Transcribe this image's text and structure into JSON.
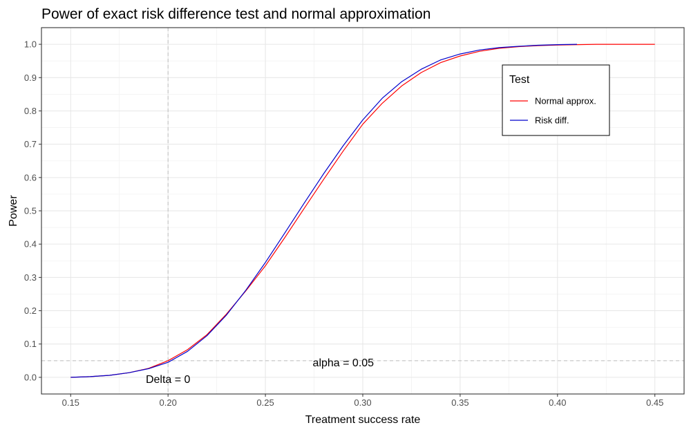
{
  "chart_data": {
    "type": "line",
    "title": "Power of exact risk difference test and normal approximation",
    "xlabel": "Treatment success rate",
    "ylabel": "Power",
    "xlim": [
      0.135,
      0.465
    ],
    "ylim": [
      -0.05,
      1.05
    ],
    "x_ticks": [
      0.15,
      0.2,
      0.25,
      0.3,
      0.35,
      0.4,
      0.45
    ],
    "x_tick_labels": [
      "0.15",
      "0.20",
      "0.25",
      "0.30",
      "0.35",
      "0.40",
      "0.45"
    ],
    "y_ticks": [
      0.0,
      0.1,
      0.2,
      0.3,
      0.4,
      0.5,
      0.6,
      0.7,
      0.8,
      0.9,
      1.0
    ],
    "y_tick_labels": [
      "0.0",
      "0.1",
      "0.2",
      "0.3",
      "0.4",
      "0.5",
      "0.6",
      "0.7",
      "0.8",
      "0.9",
      "1.0"
    ],
    "grid": true,
    "legend": {
      "title": "Test",
      "position": "top-right"
    },
    "reference_lines": [
      {
        "orientation": "horizontal",
        "value": 0.05,
        "label": "alpha = 0.05",
        "label_x": 0.29,
        "label_y": 0.05
      },
      {
        "orientation": "vertical",
        "value": 0.2,
        "label": "Delta = 0",
        "label_x": 0.2,
        "label_y": 0.0
      }
    ],
    "series": [
      {
        "name": "Normal approx.",
        "color": "#ff0000",
        "x": [
          0.15,
          0.16,
          0.17,
          0.18,
          0.19,
          0.2,
          0.21,
          0.22,
          0.23,
          0.24,
          0.25,
          0.26,
          0.27,
          0.28,
          0.29,
          0.3,
          0.31,
          0.32,
          0.33,
          0.34,
          0.35,
          0.36,
          0.37,
          0.38,
          0.39,
          0.4,
          0.41,
          0.42,
          0.43,
          0.44,
          0.45
        ],
        "y": [
          0.0,
          0.002,
          0.006,
          0.014,
          0.027,
          0.05,
          0.083,
          0.128,
          0.19,
          0.26,
          0.335,
          0.42,
          0.508,
          0.595,
          0.68,
          0.76,
          0.823,
          0.875,
          0.915,
          0.945,
          0.965,
          0.979,
          0.988,
          0.993,
          0.996,
          0.998,
          0.999,
          1.0,
          1.0,
          1.0,
          1.0
        ]
      },
      {
        "name": "Risk diff.",
        "color": "#0000cc",
        "x": [
          0.15,
          0.16,
          0.17,
          0.18,
          0.19,
          0.2,
          0.21,
          0.22,
          0.23,
          0.24,
          0.25,
          0.26,
          0.27,
          0.28,
          0.29,
          0.3,
          0.31,
          0.32,
          0.33,
          0.34,
          0.35,
          0.36,
          0.37,
          0.38,
          0.39,
          0.4,
          0.41
        ],
        "y": [
          0.0,
          0.002,
          0.006,
          0.014,
          0.026,
          0.045,
          0.078,
          0.125,
          0.187,
          0.262,
          0.345,
          0.434,
          0.524,
          0.612,
          0.696,
          0.773,
          0.838,
          0.888,
          0.925,
          0.953,
          0.971,
          0.983,
          0.99,
          0.994,
          0.997,
          0.999,
          1.0
        ]
      }
    ]
  }
}
